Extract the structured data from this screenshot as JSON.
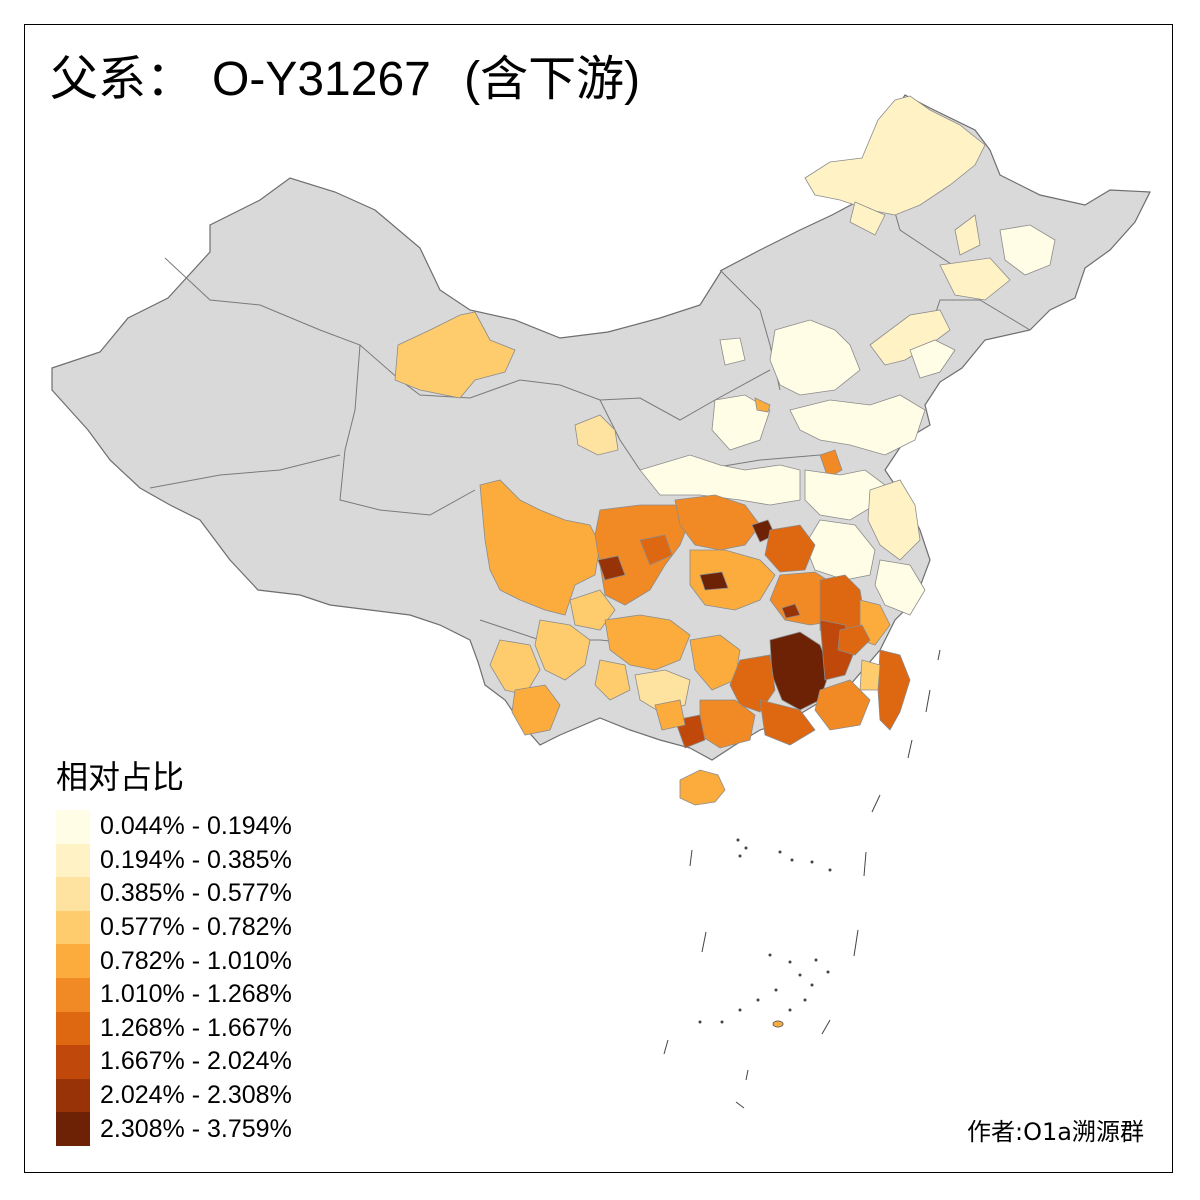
{
  "title": {
    "prefix": "父系：",
    "haplogroup": "O-Y31267",
    "suffix": "(含下游)"
  },
  "legend": {
    "title": "相对占比",
    "items": [
      {
        "label": "0.044% - 0.194%",
        "color": "#fffde6"
      },
      {
        "label": "0.194% - 0.385%",
        "color": "#fff3c6"
      },
      {
        "label": "0.385% - 0.577%",
        "color": "#fee3a0"
      },
      {
        "label": "0.577% - 0.782%",
        "color": "#fecc6c"
      },
      {
        "label": "0.782% - 1.010%",
        "color": "#fbac3c"
      },
      {
        "label": "1.010% - 1.268%",
        "color": "#f18a24"
      },
      {
        "label": "1.268% - 1.667%",
        "color": "#de6712"
      },
      {
        "label": "1.667% - 2.024%",
        "color": "#bf480a"
      },
      {
        "label": "2.024% - 2.308%",
        "color": "#983207"
      },
      {
        "label": "2.308% - 3.759%",
        "color": "#6d2206"
      }
    ]
  },
  "no_data_color": "#d9d9d9",
  "credit": "作者:O1a溯源群"
}
